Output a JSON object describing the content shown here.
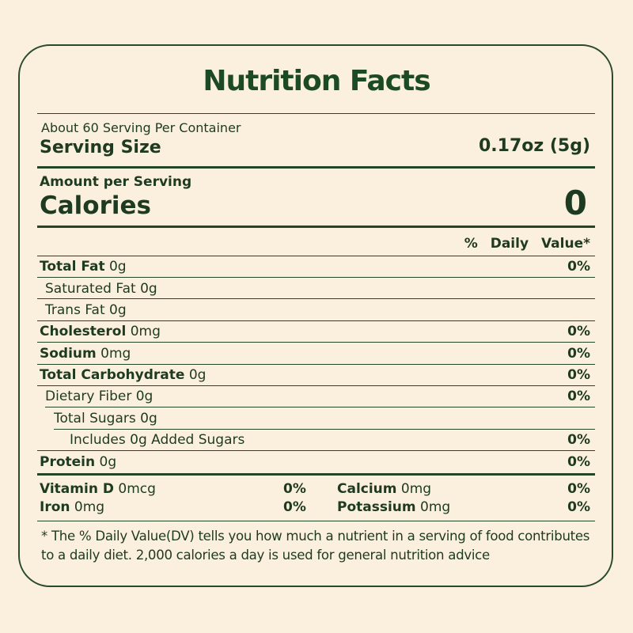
{
  "title": "Nutrition Facts",
  "servings_per_container": "About 60 Serving Per Container",
  "serving_size": {
    "label": "Serving Size",
    "value": "0.17oz (5g)"
  },
  "amount_per_serving": "Amount per Serving",
  "calories": {
    "label": "Calories",
    "value": "0"
  },
  "daily_value_header": "% Daily Value*",
  "nutrients": [
    {
      "name": "Total Fat",
      "amount": "0g",
      "dv": "0%"
    },
    {
      "name": "Saturated Fat",
      "amount": "0g",
      "dv": ""
    },
    {
      "name": "Trans Fat",
      "amount": "0g",
      "dv": ""
    },
    {
      "name": "Cholesterol",
      "amount": "0mg",
      "dv": "0%"
    },
    {
      "name": "Sodium",
      "amount": "0mg",
      "dv": "0%"
    },
    {
      "name": "Total Carbohydrate",
      "amount": "0g",
      "dv": "0%"
    },
    {
      "name": "Dietary Fiber",
      "amount": "0g",
      "dv": "0%"
    },
    {
      "name": "Total Sugars",
      "amount": "0g",
      "dv": ""
    },
    {
      "name": "Includes 0g Added Sugars",
      "amount": "",
      "dv": "0%"
    },
    {
      "name": "Protein",
      "amount": "0g",
      "dv": "0%"
    }
  ],
  "vitamins": [
    {
      "name": "Vitamin D",
      "amount": "0mcg",
      "dv": "0%"
    },
    {
      "name": "Calcium",
      "amount": "0mg",
      "dv": "0%"
    },
    {
      "name": "Iron",
      "amount": "0mg",
      "dv": "0%"
    },
    {
      "name": "Potassium",
      "amount": "0mg",
      "dv": "0%"
    }
  ],
  "footnote": [
    "* The % Daily Value(DV) tells you how much a nutrient in a serving of food contributes",
    "to a daily diet. 2,000 calories a day is used for general nutrition advice"
  ],
  "colors": {
    "background": "#fbf0de",
    "text": "#1e3a20",
    "rule": "#244526"
  }
}
